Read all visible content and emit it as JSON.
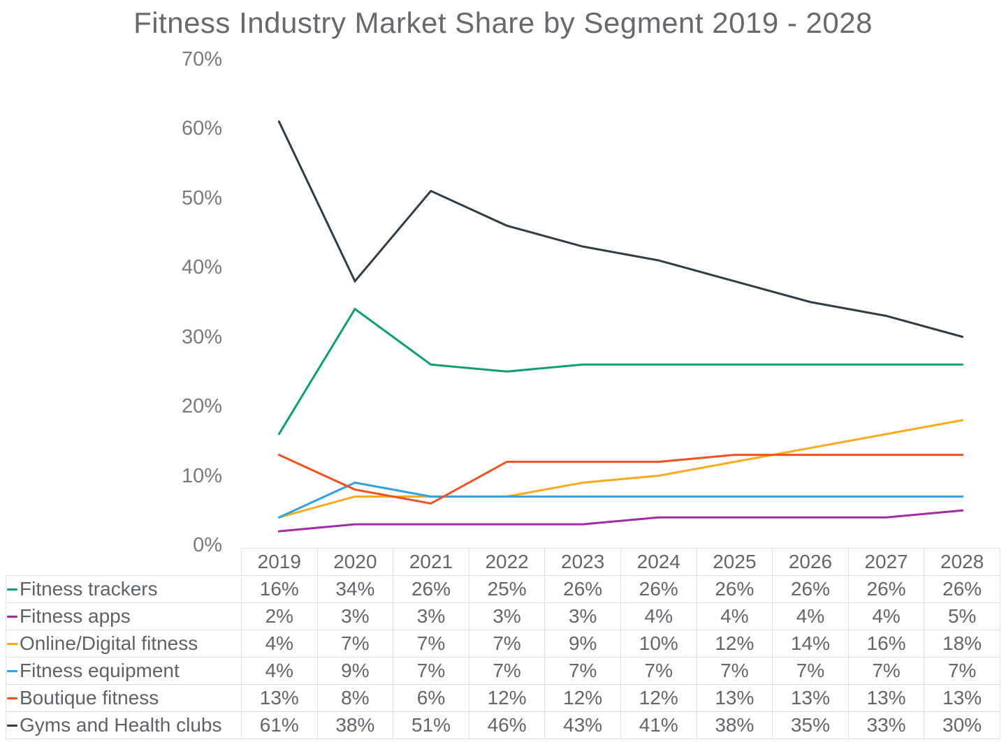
{
  "chart_data": {
    "type": "line",
    "title": "Fitness Industry Market Share by Segment 2019 - 2028",
    "categories": [
      "2019",
      "2020",
      "2021",
      "2022",
      "2023",
      "2024",
      "2025",
      "2026",
      "2027",
      "2028"
    ],
    "series": [
      {
        "name": "Fitness trackers",
        "color": "#0da06e",
        "values": [
          16,
          34,
          26,
          25,
          26,
          26,
          26,
          26,
          26,
          26
        ]
      },
      {
        "name": "Fitness apps",
        "color": "#a32ba3",
        "values": [
          2,
          3,
          3,
          3,
          3,
          4,
          4,
          4,
          4,
          5
        ]
      },
      {
        "name": "Online/Digital fitness",
        "color": "#fbaa19",
        "values": [
          4,
          7,
          7,
          7,
          9,
          10,
          12,
          14,
          16,
          18
        ]
      },
      {
        "name": "Fitness equipment",
        "color": "#31a2df",
        "values": [
          4,
          9,
          7,
          7,
          7,
          7,
          7,
          7,
          7,
          7
        ]
      },
      {
        "name": "Boutique fitness",
        "color": "#f4511e",
        "values": [
          13,
          8,
          6,
          12,
          12,
          12,
          13,
          13,
          13,
          13
        ]
      },
      {
        "name": "Gyms and Health clubs",
        "color": "#2f3d46",
        "values": [
          61,
          38,
          51,
          46,
          43,
          41,
          38,
          35,
          33,
          30
        ]
      }
    ],
    "xlabel": "",
    "ylabel": "",
    "ylim": [
      0,
      70
    ],
    "yticks": [
      {
        "value": 0,
        "label": "0%"
      },
      {
        "value": 10,
        "label": "10%"
      },
      {
        "value": 20,
        "label": "20%"
      },
      {
        "value": 30,
        "label": "30%"
      },
      {
        "value": 40,
        "label": "40%"
      },
      {
        "value": 50,
        "label": "50%"
      },
      {
        "value": 60,
        "label": "60%"
      },
      {
        "value": 70,
        "label": "70%"
      },
      {
        "value": 0,
        "label": ""
      }
    ],
    "value_suffix": "%",
    "grid": false,
    "legend_position": "table-rows-left"
  }
}
